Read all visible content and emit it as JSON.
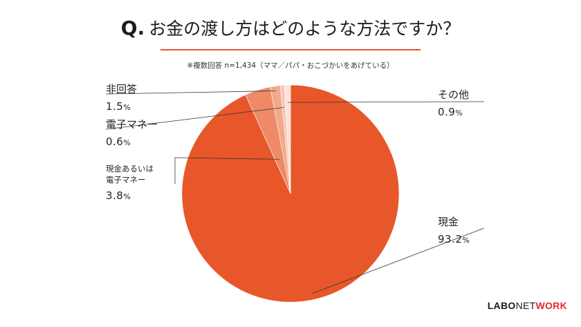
{
  "header": {
    "q_prefix": "Q.",
    "question": "お金の渡し方はどのような方法ですか？",
    "note": "※複数回答 n=1,434（ママ／パパ・おこづかいをあげている）"
  },
  "chart_data": {
    "type": "pie",
    "title": "Q. お金の渡し方はどのような方法ですか？",
    "subtitle": "※複数回答 n=1,434（ママ／パパ・おこづかいをあげている）",
    "unit": "%",
    "start": "12 o'clock, clockwise",
    "slices": [
      {
        "key": "cash",
        "label": "現金",
        "value": 93.2,
        "color": "#e8572a"
      },
      {
        "key": "both",
        "label": "現金あるいは電子マネー",
        "label_lines": [
          "現金あるいは",
          "電子マネー"
        ],
        "value": 3.8,
        "color": "#ee8a67"
      },
      {
        "key": "none",
        "label": "非回答",
        "value": 1.5,
        "color": "#f2a98c"
      },
      {
        "key": "emoney",
        "label": "電子マネー",
        "value": 0.6,
        "color": "#f6c6b3"
      },
      {
        "key": "other",
        "label": "その他",
        "value": 0.9,
        "color": "#fbe3d9"
      }
    ]
  },
  "labels": {
    "cash": {
      "name": "現金",
      "value": "93.2",
      "unit": "%"
    },
    "both": {
      "line1": "現金あるいは",
      "line2": "電子マネー",
      "value": "3.8",
      "unit": "%"
    },
    "none": {
      "name": "非回答",
      "value": "1.5",
      "unit": "%"
    },
    "emoney": {
      "name": "電子マネー",
      "value": "0.6",
      "unit": "%"
    },
    "other": {
      "name": "その他",
      "value": "0.9",
      "unit": "%"
    }
  },
  "brand": {
    "part1": "LABO",
    "part2": "NET",
    "part3": "WORK"
  },
  "colors": {
    "accent": "#e8572a",
    "leader": "#333333",
    "brand_red": "#e8272a"
  }
}
